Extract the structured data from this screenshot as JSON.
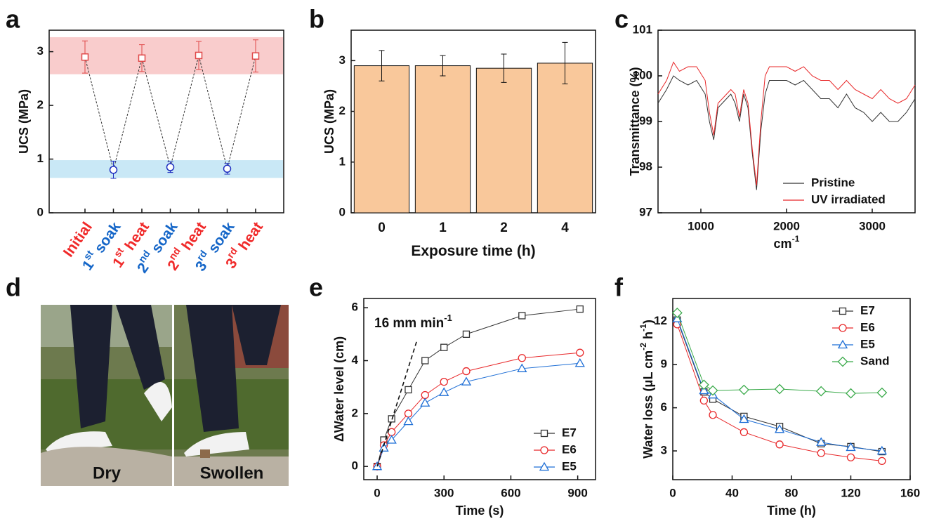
{
  "chart_data": [
    {
      "type": "errorline",
      "label": "a",
      "ylabel": [
        {
          "t": "UCS (MPa)"
        }
      ],
      "categories": [
        [
          {
            "t": "Initial"
          }
        ],
        [
          {
            "t": "1"
          },
          {
            "t": "st",
            "sup": true
          },
          {
            "t": " soak"
          }
        ],
        [
          {
            "t": "1"
          },
          {
            "t": "st",
            "sup": true
          },
          {
            "t": " heat"
          }
        ],
        [
          {
            "t": "2"
          },
          {
            "t": "nd",
            "sup": true
          },
          {
            "t": " soak"
          }
        ],
        [
          {
            "t": "2"
          },
          {
            "t": "nd",
            "sup": true
          },
          {
            "t": " heat"
          }
        ],
        [
          {
            "t": "3"
          },
          {
            "t": "rd",
            "sup": true
          },
          {
            "t": " soak"
          }
        ],
        [
          {
            "t": "3"
          },
          {
            "t": "rd",
            "sup": true
          },
          {
            "t": " heat"
          }
        ]
      ],
      "label_colors": [
        "#f02a2a",
        "#1566c8",
        "#f02a2a",
        "#1566c8",
        "#f02a2a",
        "#1566c8",
        "#f02a2a"
      ],
      "marker_colors": [
        "#e04848",
        "#1f2fc0",
        "#e04848",
        "#1f2fc0",
        "#e04848",
        "#1f2fc0",
        "#e04848"
      ],
      "markers": [
        "square",
        "circle",
        "square",
        "circle",
        "square",
        "circle",
        "square"
      ],
      "values": [
        2.9,
        0.8,
        2.88,
        0.85,
        2.93,
        0.82,
        2.92
      ],
      "errors": [
        0.3,
        0.16,
        0.25,
        0.1,
        0.26,
        0.1,
        0.3
      ],
      "bands": [
        {
          "range": [
            2.58,
            3.27
          ],
          "color": "#f9cccc"
        },
        {
          "range": [
            0.65,
            0.98
          ],
          "color": "#c9e8f6"
        }
      ],
      "ylim": [
        0,
        3.4
      ],
      "yticks": [
        0,
        1,
        2,
        3
      ]
    },
    {
      "type": "bar",
      "label": "b",
      "ylabel": [
        {
          "t": "UCS (MPa)"
        }
      ],
      "xlabel": [
        {
          "t": "Exposure time (h)"
        }
      ],
      "categories": [
        "0",
        "1",
        "2",
        "4"
      ],
      "values": [
        2.9,
        2.9,
        2.85,
        2.95
      ],
      "errors": [
        0.3,
        0.2,
        0.28,
        0.41
      ],
      "color": "#f9c89b",
      "ylim": [
        0,
        3.6
      ],
      "yticks": [
        0,
        1,
        2,
        3
      ]
    },
    {
      "type": "line",
      "label": "c",
      "ylabel": [
        {
          "t": "Transmittance (%)"
        }
      ],
      "xlabel": [
        {
          "t": "cm"
        },
        {
          "t": "-1",
          "sup": true
        }
      ],
      "x": [
        500,
        600,
        680,
        750,
        850,
        950,
        1050,
        1100,
        1150,
        1200,
        1300,
        1350,
        1400,
        1450,
        1500,
        1550,
        1600,
        1650,
        1700,
        1750,
        1800,
        1900,
        2000,
        2100,
        2200,
        2300,
        2400,
        2500,
        2600,
        2700,
        2800,
        2900,
        3000,
        3100,
        3200,
        3300,
        3400,
        3500
      ],
      "series": [
        {
          "name": "Pristine",
          "color": "#333333",
          "values": [
            99.4,
            99.7,
            100.0,
            99.9,
            99.8,
            99.9,
            99.6,
            99.0,
            98.6,
            99.3,
            99.5,
            99.6,
            99.4,
            99.0,
            99.6,
            99.3,
            98.3,
            97.5,
            98.8,
            99.6,
            99.9,
            99.9,
            99.9,
            99.8,
            99.9,
            99.7,
            99.5,
            99.5,
            99.3,
            99.6,
            99.3,
            99.2,
            99.0,
            99.2,
            99.0,
            99.0,
            99.2,
            99.5
          ]
        },
        {
          "name": "UV irradiated",
          "color": "#e8282a",
          "values": [
            99.6,
            99.9,
            100.3,
            100.1,
            100.2,
            100.2,
            99.9,
            99.2,
            98.7,
            99.4,
            99.6,
            99.7,
            99.6,
            99.1,
            99.7,
            99.4,
            98.4,
            97.6,
            99.0,
            100.0,
            100.2,
            100.2,
            100.2,
            100.1,
            100.2,
            100.0,
            99.9,
            99.9,
            99.7,
            99.9,
            99.7,
            99.6,
            99.5,
            99.7,
            99.5,
            99.4,
            99.5,
            99.8
          ]
        }
      ],
      "xlim": [
        500,
        3500
      ],
      "xticks": [
        1000,
        2000,
        3000
      ],
      "ylim": [
        97,
        101
      ],
      "yticks": [
        97,
        98,
        99,
        100,
        101
      ],
      "legend": "lower right"
    },
    {
      "type": "image",
      "label": "d",
      "captions": [
        "Dry",
        "Swollen"
      ]
    },
    {
      "type": "line",
      "label": "e",
      "ylabel": [
        {
          "t": "ΔWater level (cm)"
        }
      ],
      "xlabel": [
        {
          "t": "Time (s)"
        }
      ],
      "x": [
        0,
        30,
        65,
        140,
        215,
        300,
        400,
        650,
        910
      ],
      "series": [
        {
          "name": "E7",
          "color": "#333333",
          "marker": "square",
          "values": [
            0,
            1.0,
            1.8,
            2.9,
            4.0,
            4.5,
            5.0,
            5.7,
            5.95
          ]
        },
        {
          "name": "E6",
          "color": "#e8282a",
          "marker": "circle",
          "values": [
            0,
            0.8,
            1.3,
            2.0,
            2.7,
            3.2,
            3.6,
            4.1,
            4.3
          ]
        },
        {
          "name": "E5",
          "color": "#1f6fd6",
          "marker": "triangle",
          "values": [
            0,
            0.7,
            1.0,
            1.7,
            2.4,
            2.8,
            3.2,
            3.7,
            3.9
          ]
        }
      ],
      "annotation": [
        {
          "t": "16 mm min"
        },
        {
          "t": "-1",
          "sup": true
        }
      ],
      "guide": {
        "x": [
          0,
          180
        ],
        "y": [
          0,
          4.8
        ]
      },
      "xlim": [
        -60,
        980
      ],
      "xticks": [
        0,
        300,
        600,
        900
      ],
      "ylim": [
        -0.5,
        6.35
      ],
      "yticks": [
        0,
        2,
        4,
        6
      ],
      "legend": "lower right"
    },
    {
      "type": "line",
      "label": "f",
      "ylabel": [
        {
          "t": "Water loss (μL cm"
        },
        {
          "t": "-2",
          "sup": true
        },
        {
          "t": " h"
        },
        {
          "t": "-1",
          "sup": true
        },
        {
          "t": ")"
        }
      ],
      "xlabel": [
        {
          "t": "Time (h)"
        }
      ],
      "x": [
        3,
        21,
        27,
        48,
        72,
        100,
        120,
        141
      ],
      "series": [
        {
          "name": "E7",
          "color": "#333333",
          "marker": "square",
          "values": [
            12.1,
            7.1,
            6.6,
            5.4,
            4.7,
            3.5,
            3.3,
            2.95
          ]
        },
        {
          "name": "E6",
          "color": "#e8282a",
          "marker": "circle",
          "values": [
            11.8,
            6.5,
            5.5,
            4.3,
            3.45,
            2.85,
            2.55,
            2.3
          ]
        },
        {
          "name": "E5",
          "color": "#1f6fd6",
          "marker": "triangle",
          "values": [
            12.2,
            7.2,
            6.9,
            5.2,
            4.5,
            3.6,
            3.25,
            3.0
          ]
        },
        {
          "name": "Sand",
          "color": "#3aaa4a",
          "marker": "diamond",
          "values": [
            12.6,
            7.6,
            7.2,
            7.25,
            7.3,
            7.15,
            7.0,
            7.05
          ]
        }
      ],
      "xlim": [
        0,
        160
      ],
      "xticks": [
        0,
        40,
        80,
        120,
        160
      ],
      "ylim": [
        1,
        13.6
      ],
      "yticks": [
        3,
        6,
        9,
        12
      ],
      "legend": "upper right"
    }
  ]
}
